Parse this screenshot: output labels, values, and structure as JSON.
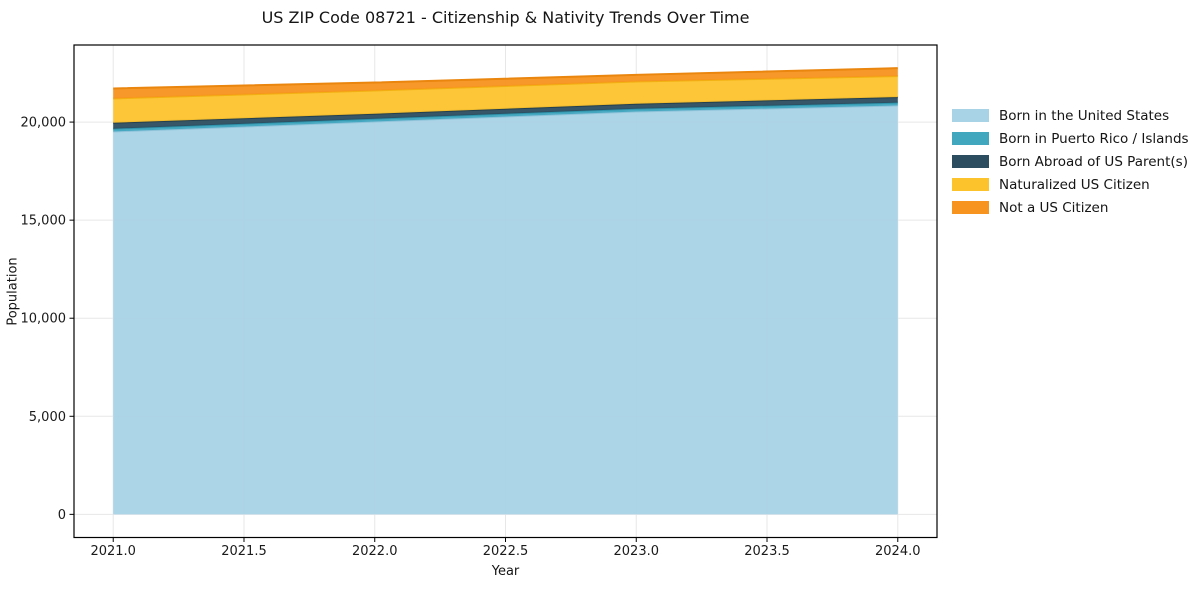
{
  "title": "US ZIP Code 08721 - Citizenship & Nativity Trends Over Time",
  "chart_data": {
    "type": "area",
    "stacked": true,
    "title": "US ZIP Code 08721 - Citizenship & Nativity Trends Over Time",
    "xlabel": "Year",
    "ylabel": "Population",
    "x": [
      2021,
      2022,
      2023,
      2024
    ],
    "series": [
      {
        "name": "Born in the United States",
        "color": "#A8D3E6",
        "edge": "#8FC3DA",
        "values": [
          19520,
          20030,
          20540,
          20850
        ]
      },
      {
        "name": "Born in Puerto Rico / Islands",
        "color": "#41A7BF",
        "edge": "#2E96AE",
        "values": [
          140,
          140,
          140,
          140
        ]
      },
      {
        "name": "Born Abroad of US Parent(s)",
        "color": "#2C4D5F",
        "edge": "#24404F",
        "values": [
          305,
          255,
          255,
          285
        ]
      },
      {
        "name": "Naturalized US Citizen",
        "color": "#FDC32D",
        "edge": "#F2B112",
        "values": [
          1240,
          1185,
          1135,
          1070
        ]
      },
      {
        "name": "Not a US Citizen",
        "color": "#F7941F",
        "edge": "#EA850D",
        "values": [
          510,
          405,
          340,
          405
        ]
      }
    ],
    "xticks": {
      "values": [
        2021.0,
        2021.5,
        2022.0,
        2022.5,
        2023.0,
        2023.5,
        2024.0
      ],
      "labels": [
        "2021.0",
        "2021.5",
        "2022.0",
        "2022.5",
        "2023.0",
        "2023.5",
        "2024.0"
      ]
    },
    "yticks": {
      "values": [
        0,
        5000,
        10000,
        15000,
        20000
      ],
      "labels": [
        "0",
        "5,000",
        "10,000",
        "15,000",
        "20,000"
      ]
    },
    "xlim": [
      2020.85,
      2024.15
    ],
    "ylim": [
      -1180,
      23930
    ],
    "grid": true,
    "grid_color": "#e7e7e7",
    "spine_color": "#000000",
    "tick_label_color": "#1a1a1a",
    "legend_position": "right"
  }
}
